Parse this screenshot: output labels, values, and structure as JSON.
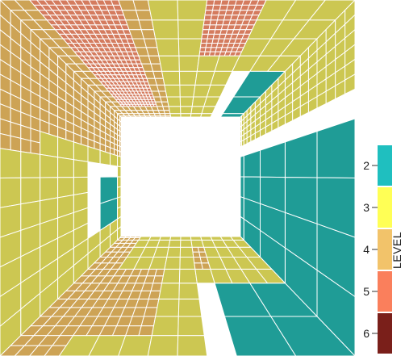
{
  "chart_data": {
    "type": "heatmap",
    "description_kind": "perspective tile grid (four walls of a corridor) colored by level",
    "legend": {
      "title": "LEVEL",
      "orientation": "vertical",
      "placement": "right",
      "entries": [
        {
          "level": 2,
          "label": "2",
          "color": "#1f9c96"
        },
        {
          "level": 3,
          "label": "3",
          "color": "#ccc752"
        },
        {
          "level": 4,
          "label": "4",
          "color": "#cda355"
        },
        {
          "level": 5,
          "label": "5",
          "color": "#d47b5e"
        },
        {
          "level": 6,
          "label": "6",
          "color": "#6e2018"
        }
      ],
      "swatch_colors": [
        "#1fbfbf",
        "#ffff55",
        "#f2c36a",
        "#fa7f5c",
        "#7a1f1a"
      ]
    },
    "walls": {
      "top": {
        "base_level": 3,
        "regions": [
          {
            "u": [
              0.0,
              0.45
            ],
            "v": [
              0.0,
              1.0
            ],
            "level": 4,
            "fine": true
          },
          {
            "u": [
              0.05,
              0.35
            ],
            "v": [
              0.0,
              0.75
            ],
            "level": 5,
            "fine": true
          },
          {
            "u": [
              0.6,
              0.75
            ],
            "v": [
              0.0,
              0.35
            ],
            "level": 5,
            "fine": true
          },
          {
            "u": [
              0.78,
              1.0
            ],
            "v": [
              0.45,
              1.0
            ],
            "level": 2,
            "fine": false
          }
        ]
      },
      "left": {
        "base_level": 3,
        "regions": [
          {
            "u": [
              0.0,
              0.3
            ],
            "v": [
              0.0,
              1.0
            ],
            "level": 4,
            "fine": true
          },
          {
            "u": [
              0.45,
              0.85
            ],
            "v": [
              0.55,
              0.85
            ],
            "level": 2,
            "fine": false
          },
          {
            "u": [
              0.15,
              0.4
            ],
            "v": [
              0.0,
              0.25
            ],
            "level": 4,
            "fine": true
          }
        ]
      },
      "right": {
        "base_level": 2,
        "regions": [
          {
            "u": [
              0.0,
              0.25
            ],
            "v": [
              0.0,
              1.0
            ],
            "level": 3,
            "fine": true
          }
        ]
      },
      "bottom": {
        "base_level": 3,
        "regions": [
          {
            "u": [
              0.0,
              0.18
            ],
            "v": [
              0.0,
              1.0
            ],
            "level": 4,
            "fine": true
          },
          {
            "u": [
              0.2,
              0.4
            ],
            "v": [
              0.15,
              0.55
            ],
            "level": 4,
            "fine": true
          },
          {
            "u": [
              0.6,
              1.0
            ],
            "v": [
              0.0,
              0.5
            ],
            "level": 2,
            "fine": false
          },
          {
            "u": [
              0.55,
              0.65
            ],
            "v": [
              0.55,
              0.8
            ],
            "level": 4,
            "fine": true
          }
        ]
      }
    }
  }
}
